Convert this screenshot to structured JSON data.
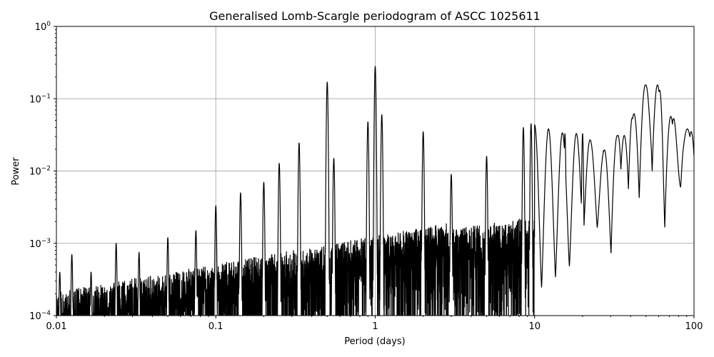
{
  "chart_data": {
    "type": "line",
    "title": "Generalised Lomb-Scargle periodogram of ASCC 1025611",
    "xlabel": "Period (days)",
    "ylabel": "Power",
    "xscale": "log",
    "yscale": "log",
    "xlim": [
      0.01,
      100
    ],
    "ylim": [
      0.0001,
      1
    ],
    "grid": true,
    "x_ticks": [
      {
        "value": 0.01,
        "label": "0.01"
      },
      {
        "value": 0.1,
        "label": "0.1"
      },
      {
        "value": 1,
        "label": "1"
      },
      {
        "value": 10,
        "label": "10"
      },
      {
        "value": 100,
        "label": "100"
      }
    ],
    "y_ticks": [
      {
        "value": 0.0001,
        "base": "10",
        "exp": "−4"
      },
      {
        "value": 0.001,
        "base": "10",
        "exp": "−3"
      },
      {
        "value": 0.01,
        "base": "10",
        "exp": "−2"
      },
      {
        "value": 0.1,
        "base": "10",
        "exp": "−1"
      },
      {
        "value": 1,
        "base": "10",
        "exp": "0"
      }
    ],
    "series": [
      {
        "color": "#000000",
        "peaks": [
          {
            "x": 0.0105,
            "y": 0.0004
          },
          {
            "x": 0.0125,
            "y": 0.0007
          },
          {
            "x": 0.0165,
            "y": 0.0004
          },
          {
            "x": 0.0237,
            "y": 0.001
          },
          {
            "x": 0.033,
            "y": 0.00075
          },
          {
            "x": 0.05,
            "y": 0.0012
          },
          {
            "x": 0.075,
            "y": 0.0015
          },
          {
            "x": 0.1,
            "y": 0.0033
          },
          {
            "x": 0.143,
            "y": 0.005
          },
          {
            "x": 0.2,
            "y": 0.007
          },
          {
            "x": 0.25,
            "y": 0.0128
          },
          {
            "x": 0.333,
            "y": 0.0245
          },
          {
            "x": 0.5,
            "y": 0.17
          },
          {
            "x": 0.55,
            "y": 0.015
          },
          {
            "x": 0.9,
            "y": 0.048
          },
          {
            "x": 1.0,
            "y": 0.28
          },
          {
            "x": 1.1,
            "y": 0.06
          },
          {
            "x": 2.0,
            "y": 0.035
          },
          {
            "x": 3.0,
            "y": 0.009
          },
          {
            "x": 5.0,
            "y": 0.016
          },
          {
            "x": 8.5,
            "y": 0.04
          },
          {
            "x": 9.5,
            "y": 0.045
          },
          {
            "x": 15.5,
            "y": 0.033
          },
          {
            "x": 20.0,
            "y": 0.033
          },
          {
            "x": 27.0,
            "y": 0.019
          },
          {
            "x": 33.0,
            "y": 0.031
          },
          {
            "x": 36.5,
            "y": 0.031
          },
          {
            "x": 42.0,
            "y": 0.062
          },
          {
            "x": 49.5,
            "y": 0.155
          },
          {
            "x": 59.0,
            "y": 0.155
          },
          {
            "x": 71.5,
            "y": 0.057
          },
          {
            "x": 96.0,
            "y": 0.035
          }
        ],
        "troughs": [
          {
            "x": 0.46,
            "y": 0.0001
          },
          {
            "x": 0.72,
            "y": 0.0001
          },
          {
            "x": 1.6,
            "y": 0.0001
          },
          {
            "x": 2.4,
            "y": 0.0001
          },
          {
            "x": 4.2,
            "y": 0.0001
          },
          {
            "x": 6.5,
            "y": 0.0001
          },
          {
            "x": 17.0,
            "y": 0.0005
          },
          {
            "x": 23.0,
            "y": 0.0022
          },
          {
            "x": 29.5,
            "y": 0.0008
          },
          {
            "x": 40.0,
            "y": 0.00013
          },
          {
            "x": 44.5,
            "y": 0.0035
          },
          {
            "x": 54.0,
            "y": 0.0097
          },
          {
            "x": 64.0,
            "y": 0.0001
          },
          {
            "x": 85.0,
            "y": 0.0098
          }
        ]
      }
    ]
  }
}
